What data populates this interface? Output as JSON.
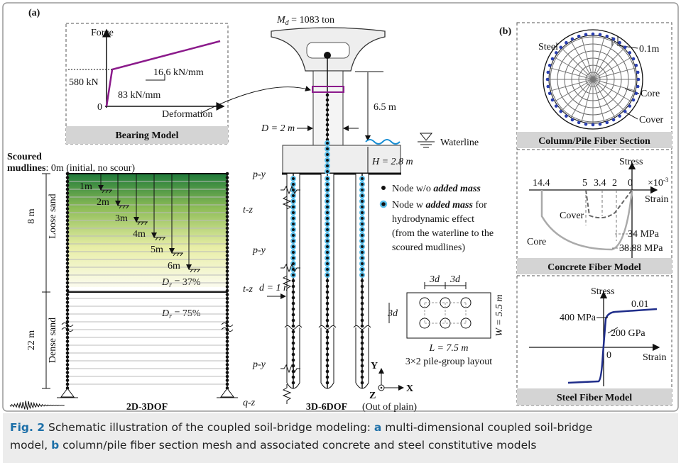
{
  "panel_labels": [
    "(a)",
    "(b)"
  ],
  "bearing_model": {
    "title": "Bearing Model",
    "y_axis": "Force",
    "x_axis": "Deformation",
    "origin": "0",
    "yield_force": "580 kN",
    "initial_stiffness": "83 kN/mm",
    "post_yield_stiffness": "16.6 kN/mm"
  },
  "bridge": {
    "mass_symbol": "M",
    "mass_subscript": "d",
    "mass_value": " = 1083 ton",
    "column_height": "6.5 m",
    "column_diameter": "D = 2 m",
    "waterline": "Waterline",
    "cap_thickness": "H = 2.8 m",
    "pile_diameter": "d = 1 m",
    "springs": [
      "p-y",
      "t-z",
      "p-y",
      "t-z",
      "p-y",
      "q-z"
    ],
    "label": "3D-6DOF"
  },
  "soil": {
    "scoured": "Scoured",
    "mudlines": "mudlines",
    "initial": ": 0m (initial, no scour)",
    "scour_depths": [
      "1m",
      "2m",
      "3m",
      "4m",
      "5m",
      "6m"
    ],
    "loose_depth": "8 m",
    "loose": "Loose sand",
    "dense_depth": "22 m",
    "dense": "Dense sand",
    "dr_symbol": "D",
    "dr_subscript": "r",
    "loose_dr": " = 37%",
    "dense_dr": " = 75%",
    "label": "2D-3DOF"
  },
  "legend": {
    "without_prefix": "Node w/o ",
    "without_emph": "added mass",
    "with_prefix": "Node w ",
    "with_emph": "added mass",
    "with_suffix": " for",
    "with_line2": "hydrodynamic effect",
    "with_line3": "(from the waterline to the",
    "with_line4": "scoured mudlines)"
  },
  "pile_layout": {
    "spacings": [
      "3d",
      "3d",
      "3d"
    ],
    "width": "W = 5.5 m",
    "length": "L = 7.5 m",
    "title": "3×2 pile-group layout"
  },
  "axes": {
    "y": "Y",
    "z": "Z",
    "x": "X",
    "note": "(Out of plain)"
  },
  "fiber_section": {
    "steel": "Steel",
    "cover_thickness": "0.1m",
    "core": "Core",
    "cover": "Cover",
    "title": "Column/Pile Fiber Section"
  },
  "concrete_model": {
    "y_axis": "Stress",
    "scale": "×10",
    "scale_exp": "-3",
    "strain_ticks": [
      "14.4",
      "5",
      "3.4",
      "2",
      "0"
    ],
    "x_axis": "Strain",
    "cover": "Cover",
    "core": "Core",
    "cover_strength": "34 MPa",
    "core_strength": "38.88 MPa",
    "title": "Concrete Fiber Model"
  },
  "steel_model": {
    "y_axis": "Stress",
    "yield": "400 MPa",
    "hardening": "0.01",
    "modulus": "200 GPa",
    "origin": "0",
    "x_axis": "Strain",
    "title": "Steel Fiber Model"
  },
  "caption": {
    "fig": "Fig. 2",
    "text1": " Schematic illustration of the coupled soil-bridge modeling: ",
    "a": "a",
    "text2": " multi-dimensional coupled soil-bridge",
    "text3": "model, ",
    "b": "b",
    "text4": " column/pile fiber section mesh and associated concrete and steel constitutive models"
  }
}
